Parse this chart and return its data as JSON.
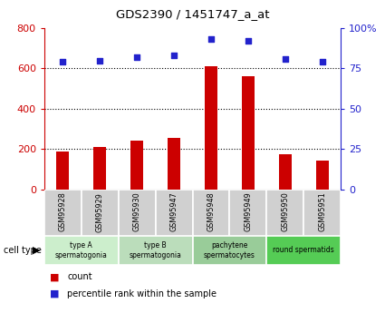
{
  "title": "GDS2390 / 1451747_a_at",
  "samples": [
    "GSM95928",
    "GSM95929",
    "GSM95930",
    "GSM95947",
    "GSM95948",
    "GSM95949",
    "GSM95950",
    "GSM95951"
  ],
  "counts": [
    190,
    210,
    240,
    255,
    610,
    560,
    175,
    145
  ],
  "percentiles": [
    79,
    80,
    82,
    83,
    93,
    92,
    81,
    79
  ],
  "bar_color": "#cc0000",
  "dot_color": "#2222cc",
  "ylim_left": [
    0,
    800
  ],
  "ylim_right": [
    0,
    100
  ],
  "yticks_left": [
    0,
    200,
    400,
    600,
    800
  ],
  "yticks_right": [
    0,
    25,
    50,
    75,
    100
  ],
  "ytick_labels_right": [
    "0",
    "25",
    "50",
    "75",
    "100%"
  ],
  "cell_groups": [
    {
      "label": "type A\nspermatogonia",
      "samples": [
        "GSM95928",
        "GSM95929"
      ],
      "color": "#cceecc"
    },
    {
      "label": "type B\nspermatogonia",
      "samples": [
        "GSM95930",
        "GSM95947"
      ],
      "color": "#bbddbb"
    },
    {
      "label": "pachytene\nspermatocytes",
      "samples": [
        "GSM95948",
        "GSM95949"
      ],
      "color": "#99cc99"
    },
    {
      "label": "round spermatids",
      "samples": [
        "GSM95950",
        "GSM95951"
      ],
      "color": "#55cc55"
    }
  ],
  "legend_count_label": "count",
  "legend_pct_label": "percentile rank within the sample",
  "cell_type_label": "cell type",
  "bg_color": "#ffffff",
  "tick_label_color_left": "#cc0000",
  "tick_label_color_right": "#2222cc",
  "sample_box_color": "#d0d0d0",
  "grid_color": "#000000",
  "bar_width": 0.35
}
